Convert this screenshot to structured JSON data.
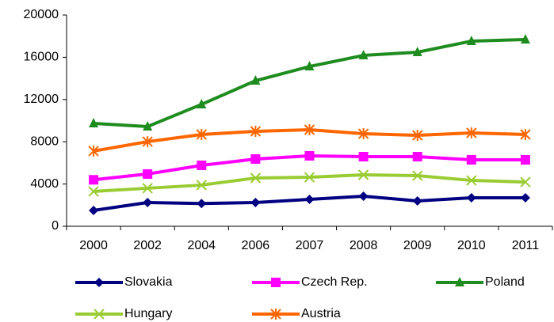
{
  "chart_data": {
    "type": "line",
    "categories": [
      "2000",
      "2002",
      "2004",
      "2006",
      "2007",
      "2008",
      "2009",
      "2010",
      "2011"
    ],
    "series": [
      {
        "name": "Slovakia",
        "color": "#000080",
        "marker": "diamond",
        "values": [
          1500,
          2250,
          2150,
          2250,
          2550,
          2850,
          2400,
          2700,
          2700
        ]
      },
      {
        "name": "Czech Rep.",
        "color": "#ff00ff",
        "marker": "square",
        "values": [
          4400,
          4950,
          5770,
          6370,
          6670,
          6590,
          6590,
          6290,
          6290
        ]
      },
      {
        "name": "Poland",
        "color": "#1e8c1e",
        "marker": "triangle",
        "values": [
          9740,
          9440,
          11540,
          13780,
          15130,
          16180,
          16480,
          17530,
          17680
        ]
      },
      {
        "name": "Hungary",
        "color": "#99cc33",
        "marker": "x",
        "values": [
          3300,
          3600,
          3900,
          4570,
          4640,
          4870,
          4790,
          4340,
          4190
        ]
      },
      {
        "name": "Austria",
        "color": "#ff6600",
        "marker": "asterisk",
        "values": [
          7120,
          8010,
          8690,
          8990,
          9140,
          8760,
          8610,
          8840,
          8690
        ]
      }
    ],
    "ylim": [
      0,
      20000
    ],
    "yticks": [
      0,
      4000,
      8000,
      12000,
      16000,
      20000
    ],
    "grid": false
  }
}
